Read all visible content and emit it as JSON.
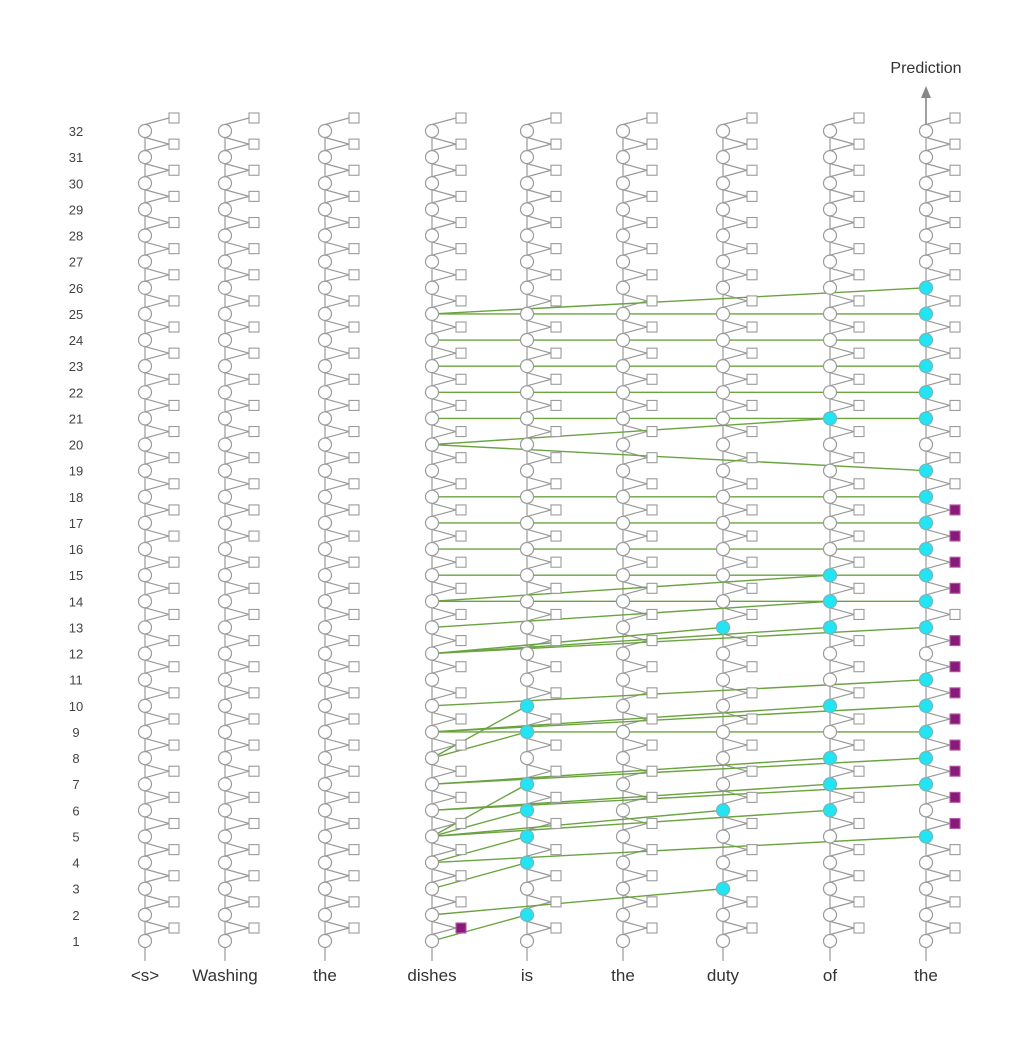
{
  "prediction_label": "Prediction",
  "tokens": [
    "<s>",
    "Washing",
    "the",
    "dishes",
    "is",
    "the",
    "duty",
    "of",
    "the"
  ],
  "layers": [
    "1",
    "2",
    "3",
    "4",
    "5",
    "6",
    "7",
    "8",
    "9",
    "10",
    "11",
    "12",
    "13",
    "14",
    "15",
    "16",
    "17",
    "18",
    "19",
    "20",
    "21",
    "22",
    "23",
    "24",
    "25",
    "26",
    "27",
    "28",
    "29",
    "30",
    "31",
    "32"
  ],
  "colors": {
    "node_stroke": "#9a9a9a",
    "active_node": "#22e4f2",
    "active_mlp": "#8a1a7a",
    "edge": "#6aa33f",
    "arrow": "#888888"
  },
  "active_attention_nodes": [
    {
      "token": 4,
      "layer": 2
    },
    {
      "token": 4,
      "layer": 4
    },
    {
      "token": 4,
      "layer": 5
    },
    {
      "token": 4,
      "layer": 6
    },
    {
      "token": 4,
      "layer": 7
    },
    {
      "token": 4,
      "layer": 9
    },
    {
      "token": 4,
      "layer": 10
    },
    {
      "token": 6,
      "layer": 3
    },
    {
      "token": 6,
      "layer": 6
    },
    {
      "token": 6,
      "layer": 13
    },
    {
      "token": 7,
      "layer": 6
    },
    {
      "token": 7,
      "layer": 7
    },
    {
      "token": 7,
      "layer": 8
    },
    {
      "token": 7,
      "layer": 10
    },
    {
      "token": 7,
      "layer": 13
    },
    {
      "token": 7,
      "layer": 14
    },
    {
      "token": 7,
      "layer": 15
    },
    {
      "token": 7,
      "layer": 21
    },
    {
      "token": 8,
      "layer": 5
    },
    {
      "token": 8,
      "layer": 7
    },
    {
      "token": 8,
      "layer": 8
    },
    {
      "token": 8,
      "layer": 9
    },
    {
      "token": 8,
      "layer": 10
    },
    {
      "token": 8,
      "layer": 11
    },
    {
      "token": 8,
      "layer": 13
    },
    {
      "token": 8,
      "layer": 14
    },
    {
      "token": 8,
      "layer": 15
    },
    {
      "token": 8,
      "layer": 16
    },
    {
      "token": 8,
      "layer": 17
    },
    {
      "token": 8,
      "layer": 18
    },
    {
      "token": 8,
      "layer": 19
    },
    {
      "token": 8,
      "layer": 21
    },
    {
      "token": 8,
      "layer": 22
    },
    {
      "token": 8,
      "layer": 23
    },
    {
      "token": 8,
      "layer": 24
    },
    {
      "token": 8,
      "layer": 25
    },
    {
      "token": 8,
      "layer": 26
    }
  ],
  "active_mlp_nodes": [
    {
      "token": 3,
      "layer": 1
    },
    {
      "token": 8,
      "layer": 5
    },
    {
      "token": 8,
      "layer": 6
    },
    {
      "token": 8,
      "layer": 7
    },
    {
      "token": 8,
      "layer": 8
    },
    {
      "token": 8,
      "layer": 9
    },
    {
      "token": 8,
      "layer": 10
    },
    {
      "token": 8,
      "layer": 11
    },
    {
      "token": 8,
      "layer": 12
    },
    {
      "token": 8,
      "layer": 14
    },
    {
      "token": 8,
      "layer": 15
    },
    {
      "token": 8,
      "layer": 16
    },
    {
      "token": 8,
      "layer": 17
    }
  ],
  "edges": [
    {
      "from": {
        "token": 3,
        "layer": 1
      },
      "to": {
        "token": 4,
        "layer": 2
      }
    },
    {
      "from": {
        "token": 3,
        "layer": 2
      },
      "to": {
        "token": 6,
        "layer": 3
      }
    },
    {
      "from": {
        "token": 3,
        "layer": 3
      },
      "to": {
        "token": 4,
        "layer": 4
      }
    },
    {
      "from": {
        "token": 3,
        "layer": 4
      },
      "to": {
        "token": 4,
        "layer": 5
      }
    },
    {
      "from": {
        "token": 3,
        "layer": 4
      },
      "to": {
        "token": 8,
        "layer": 5
      }
    },
    {
      "from": {
        "token": 3,
        "layer": 5
      },
      "to": {
        "token": 4,
        "layer": 6
      }
    },
    {
      "from": {
        "token": 3,
        "layer": 5
      },
      "to": {
        "token": 6,
        "layer": 6
      }
    },
    {
      "from": {
        "token": 3,
        "layer": 5
      },
      "to": {
        "token": 7,
        "layer": 6
      }
    },
    {
      "from": {
        "token": 3,
        "layer": 5
      },
      "to": {
        "token": 4,
        "layer": 7
      }
    },
    {
      "from": {
        "token": 3,
        "layer": 6
      },
      "to": {
        "token": 7,
        "layer": 7
      }
    },
    {
      "from": {
        "token": 3,
        "layer": 6
      },
      "to": {
        "token": 8,
        "layer": 7
      }
    },
    {
      "from": {
        "token": 3,
        "layer": 7
      },
      "to": {
        "token": 7,
        "layer": 8
      }
    },
    {
      "from": {
        "token": 3,
        "layer": 7
      },
      "to": {
        "token": 8,
        "layer": 8
      }
    },
    {
      "from": {
        "token": 3,
        "layer": 8
      },
      "to": {
        "token": 4,
        "layer": 9
      }
    },
    {
      "from": {
        "token": 3,
        "layer": 8
      },
      "to": {
        "token": 4,
        "layer": 10
      }
    },
    {
      "from": {
        "token": 3,
        "layer": 9
      },
      "to": {
        "token": 7,
        "layer": 10
      }
    },
    {
      "from": {
        "token": 3,
        "layer": 9
      },
      "to": {
        "token": 8,
        "layer": 9
      }
    },
    {
      "from": {
        "token": 3,
        "layer": 9
      },
      "to": {
        "token": 8,
        "layer": 10
      }
    },
    {
      "from": {
        "token": 3,
        "layer": 10
      },
      "to": {
        "token": 8,
        "layer": 11
      }
    },
    {
      "from": {
        "token": 3,
        "layer": 12
      },
      "to": {
        "token": 6,
        "layer": 13
      }
    },
    {
      "from": {
        "token": 3,
        "layer": 12
      },
      "to": {
        "token": 7,
        "layer": 13
      }
    },
    {
      "from": {
        "token": 3,
        "layer": 12
      },
      "to": {
        "token": 8,
        "layer": 13
      }
    },
    {
      "from": {
        "token": 3,
        "layer": 13
      },
      "to": {
        "token": 7,
        "layer": 14
      }
    },
    {
      "from": {
        "token": 3,
        "layer": 14
      },
      "to": {
        "token": 8,
        "layer": 14
      }
    },
    {
      "from": {
        "token": 3,
        "layer": 14
      },
      "to": {
        "token": 7,
        "layer": 15
      }
    },
    {
      "from": {
        "token": 3,
        "layer": 15
      },
      "to": {
        "token": 8,
        "layer": 15
      }
    },
    {
      "from": {
        "token": 3,
        "layer": 16
      },
      "to": {
        "token": 8,
        "layer": 16
      }
    },
    {
      "from": {
        "token": 3,
        "layer": 17
      },
      "to": {
        "token": 8,
        "layer": 17
      }
    },
    {
      "from": {
        "token": 3,
        "layer": 18
      },
      "to": {
        "token": 8,
        "layer": 18
      }
    },
    {
      "from": {
        "token": 3,
        "layer": 20
      },
      "to": {
        "token": 7,
        "layer": 21
      }
    },
    {
      "from": {
        "token": 3,
        "layer": 20
      },
      "to": {
        "token": 8,
        "layer": 19
      }
    },
    {
      "from": {
        "token": 3,
        "layer": 21
      },
      "to": {
        "token": 8,
        "layer": 21
      }
    },
    {
      "from": {
        "token": 3,
        "layer": 22
      },
      "to": {
        "token": 8,
        "layer": 22
      }
    },
    {
      "from": {
        "token": 3,
        "layer": 23
      },
      "to": {
        "token": 8,
        "layer": 23
      }
    },
    {
      "from": {
        "token": 3,
        "layer": 24
      },
      "to": {
        "token": 8,
        "layer": 24
      }
    },
    {
      "from": {
        "token": 3,
        "layer": 25
      },
      "to": {
        "token": 8,
        "layer": 25
      }
    },
    {
      "from": {
        "token": 3,
        "layer": 25
      },
      "to": {
        "token": 8,
        "layer": 26
      }
    }
  ]
}
